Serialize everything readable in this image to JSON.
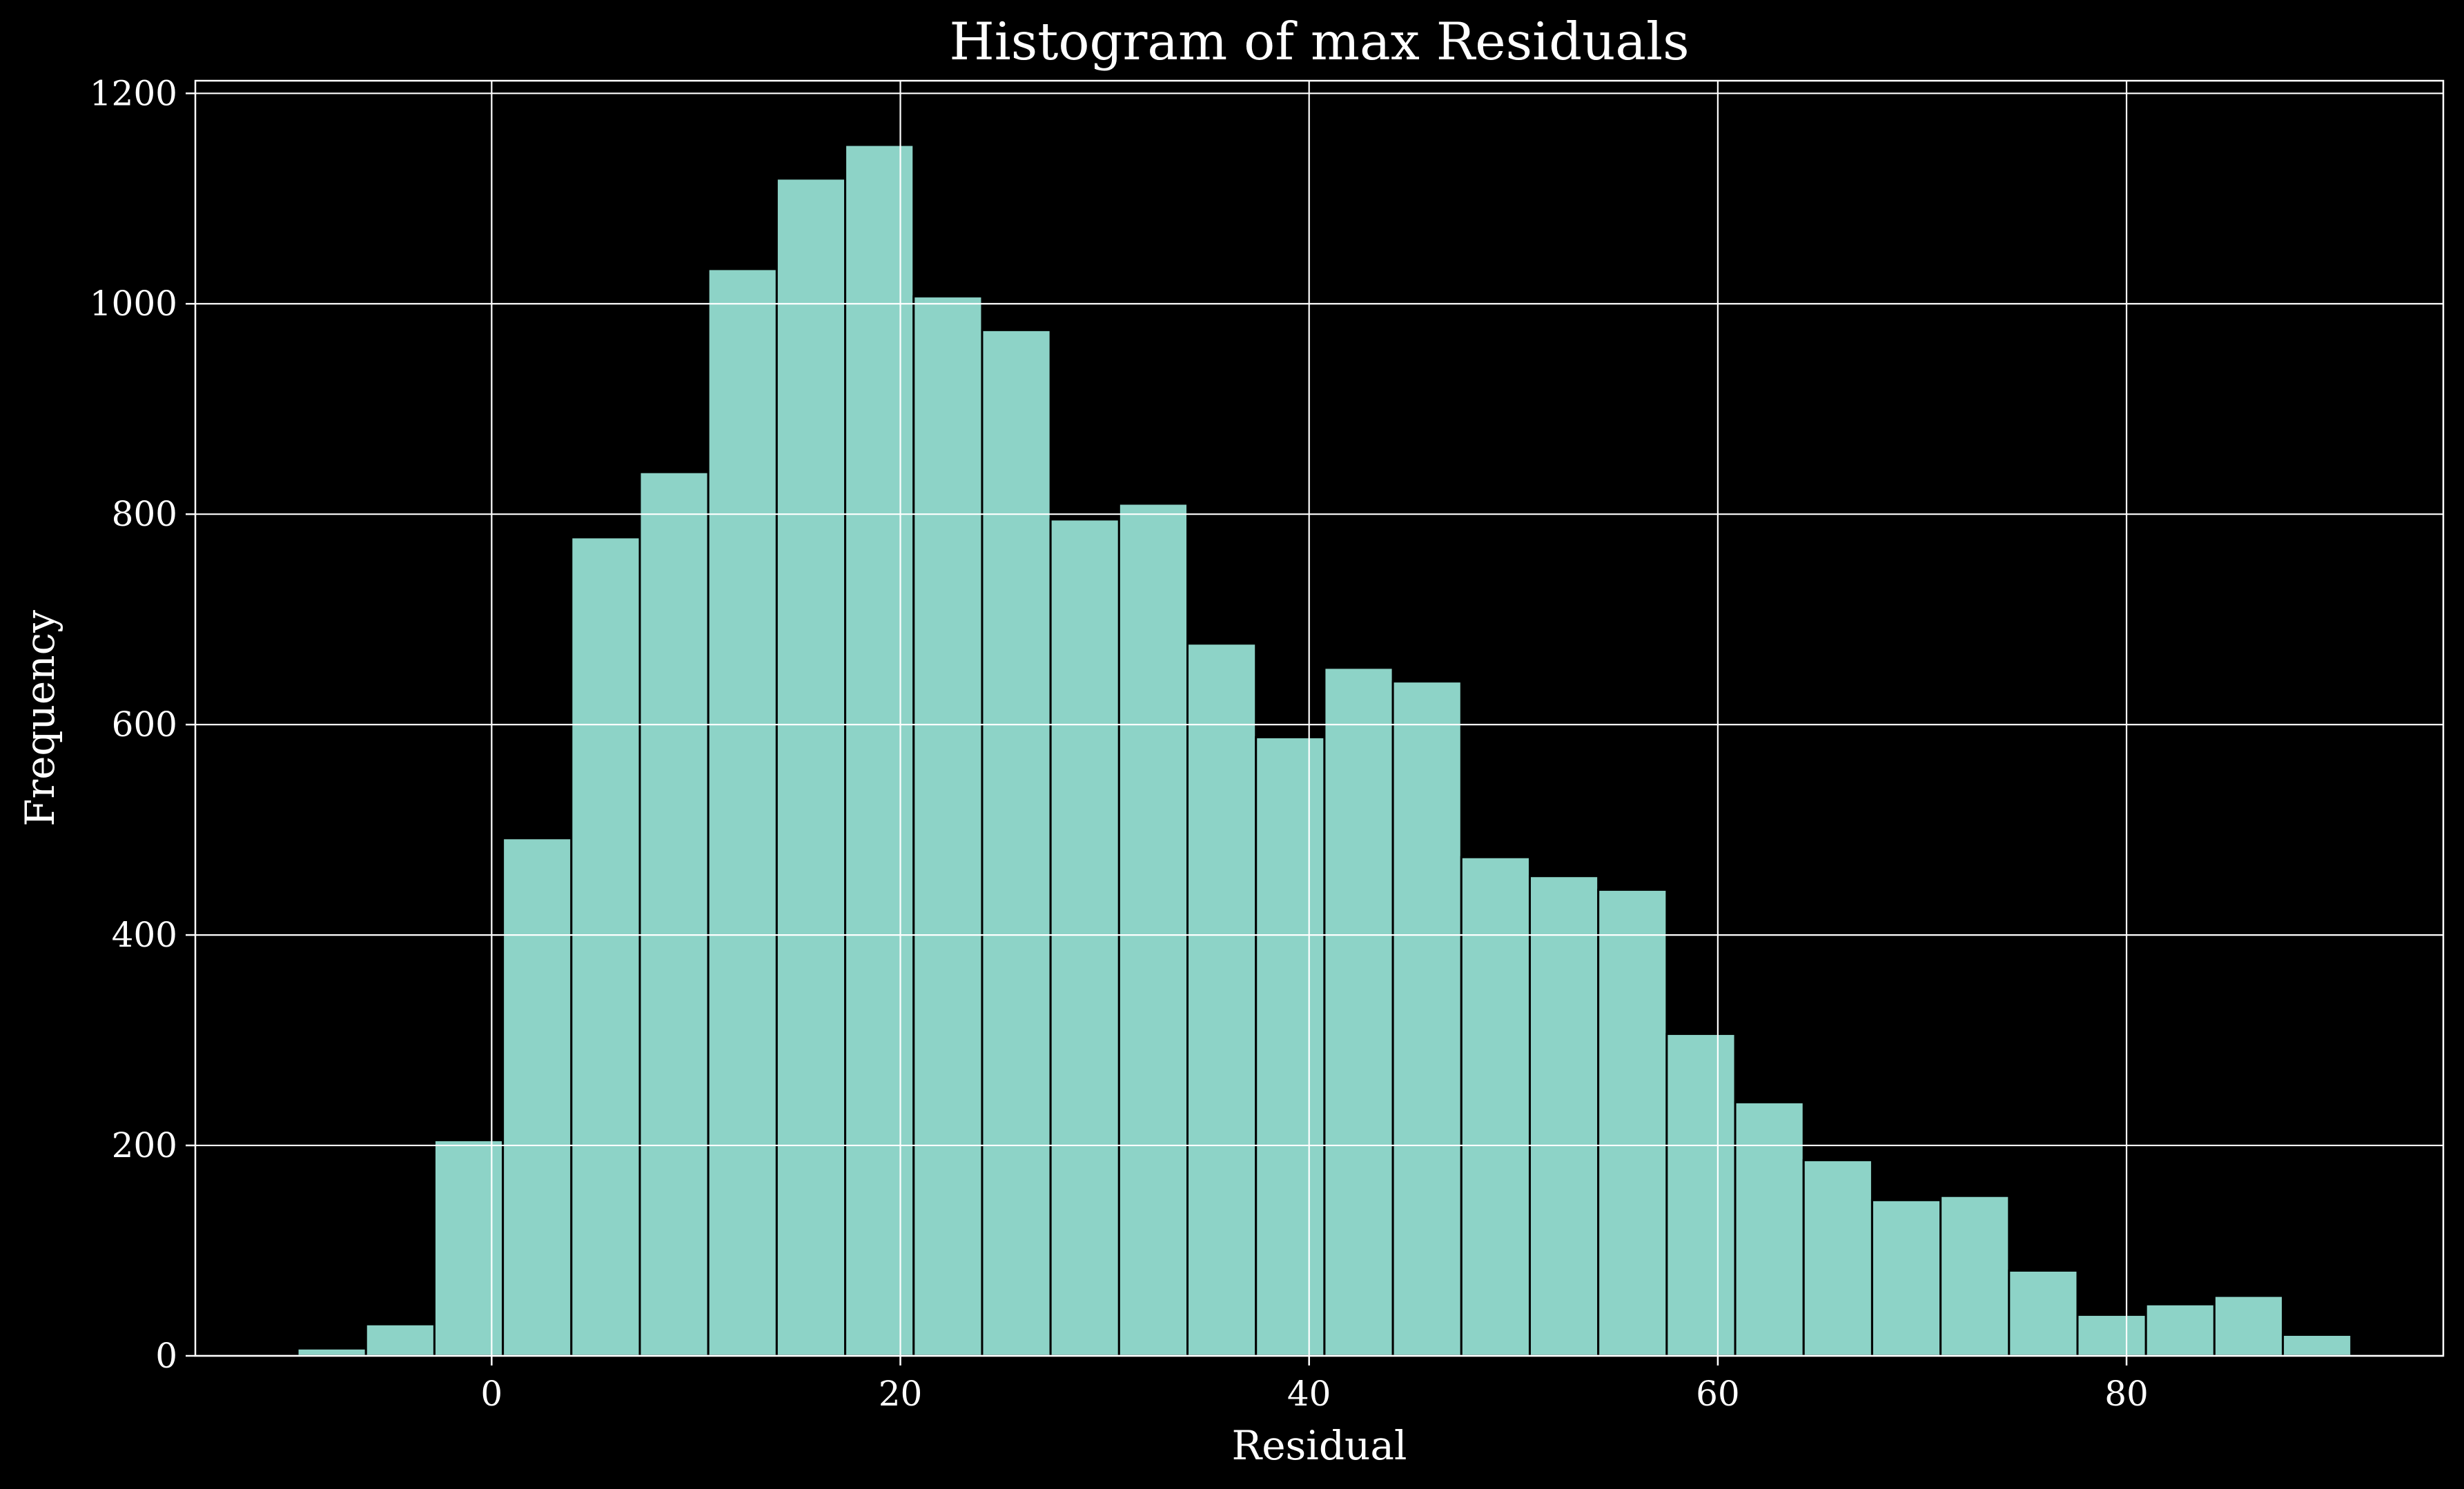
{
  "chart_data": {
    "type": "bar",
    "title": "Histogram of max Residuals",
    "xlabel": "Residual",
    "ylabel": "Frequency",
    "xlim": [
      -14.5,
      95.5
    ],
    "ylim": [
      0,
      1212
    ],
    "xticks": [
      0,
      20,
      40,
      60,
      80
    ],
    "yticks": [
      0,
      200,
      400,
      600,
      800,
      1000,
      1200
    ],
    "grid": true,
    "bin_edges": [
      -9.5,
      -6.15,
      -2.8,
      0.55,
      3.9,
      7.25,
      10.6,
      13.95,
      17.3,
      20.65,
      24.0,
      27.35,
      30.7,
      34.05,
      37.4,
      40.75,
      44.1,
      47.45,
      50.8,
      54.15,
      57.5,
      60.85,
      64.2,
      67.55,
      70.9,
      74.25,
      77.6,
      80.95,
      84.3,
      87.65,
      91.0
    ],
    "values": [
      7,
      30,
      205,
      492,
      778,
      840,
      1033,
      1119,
      1151,
      1007,
      975,
      795,
      810,
      677,
      588,
      654,
      641,
      474,
      456,
      443,
      306,
      241,
      186,
      148,
      152,
      81,
      39,
      49,
      57,
      20
    ],
    "colors": {
      "background": "#000000",
      "bar_fill": "#8dd3c7",
      "bar_edge": "#000000",
      "axes": "#ffffff",
      "grid": "#ffffff",
      "text": "#ffffff"
    }
  }
}
